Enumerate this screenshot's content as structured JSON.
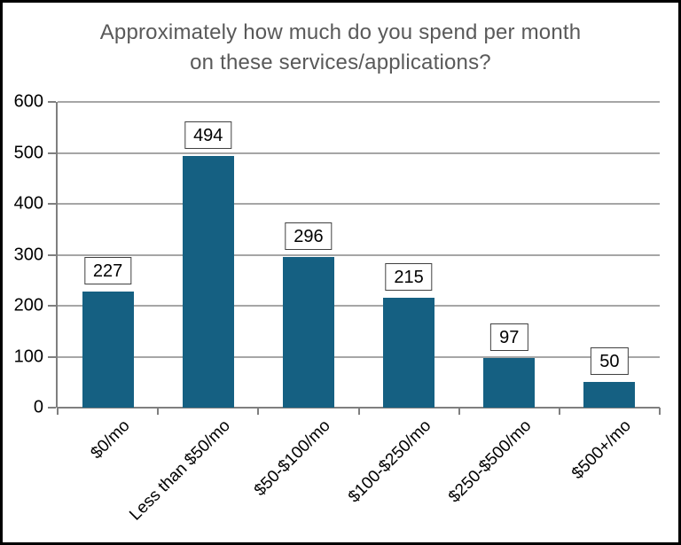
{
  "title_lines": [
    "Approximately how much do you spend per month",
    "on these services/applications?"
  ],
  "chart_data": {
    "type": "bar",
    "title": "Approximately how much do you spend per month on these services/applications?",
    "categories": [
      "$0/mo",
      "Less than $50/mo",
      "$50-$100/mo",
      "$100-$250/mo",
      "$250-$500/mo",
      "$500+/mo"
    ],
    "values": [
      227,
      494,
      296,
      215,
      97,
      50
    ],
    "xlabel": "",
    "ylabel": "",
    "ylim": [
      0,
      600
    ],
    "ytick_step": 100,
    "yticks": [
      0,
      100,
      200,
      300,
      400,
      500,
      600
    ],
    "grid": "horizontal",
    "legend": "none",
    "data_labels": "boxed values above bars"
  },
  "colors": {
    "bar": "#156082",
    "gridline": "#A6A6A6",
    "axis": "#7F7F7F",
    "title_text": "#595959",
    "label_text": "#000000",
    "label_box_bg": "#FFFFFF",
    "label_box_border": "#404040",
    "frame": "#000000"
  }
}
